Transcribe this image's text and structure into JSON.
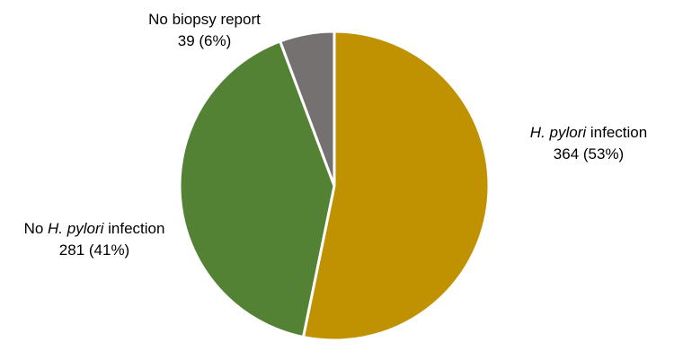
{
  "chart_data": {
    "type": "pie",
    "title": "",
    "slices": [
      {
        "key": "hp",
        "label_pre": "",
        "label_italic": "H. pylori",
        "label_post": " infection",
        "value_label": "364 (53%)",
        "count": 364,
        "percent": 53,
        "color": "#C09100"
      },
      {
        "key": "nohp",
        "label_pre": "No ",
        "label_italic": "H. pylori",
        "label_post": " infection",
        "value_label": "281 (41%)",
        "count": 281,
        "percent": 41,
        "color": "#548235"
      },
      {
        "key": "nob",
        "label_pre": "No biopsy report",
        "label_italic": "",
        "label_post": "",
        "value_label": "39 (6%)",
        "count": 39,
        "percent": 6,
        "color": "#767171"
      }
    ]
  }
}
